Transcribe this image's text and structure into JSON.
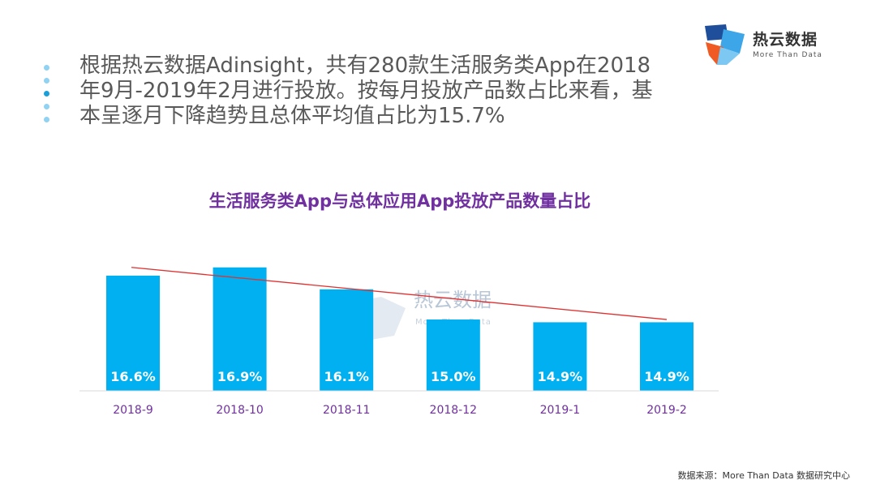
{
  "logo": {
    "name_cn": "热云数据",
    "name_en": "More Than Data"
  },
  "intro": {
    "lines": [
      "根据热云数据Adinsight，共有280款生活服务类App在2018",
      "年9月-2019年2月进行投放。按每月投放产品数占比来看，基",
      "本呈逐月下降趋势且总体平均值占比为15.7%"
    ]
  },
  "colors": {
    "bar": "#00b0f0",
    "trend": "#e03030",
    "title": "#7030a0",
    "tick": "#7030a0"
  },
  "watermark": {
    "cn": "热云数据",
    "en": "More Than Data"
  },
  "chart_data": {
    "type": "bar",
    "title": "生活服务类App与总体应用App投放产品数量占比",
    "categories": [
      "2018-9",
      "2018-10",
      "2018-11",
      "2018-12",
      "2019-1",
      "2019-2"
    ],
    "values": [
      16.6,
      16.9,
      16.1,
      15.0,
      14.9,
      14.9
    ],
    "value_labels": [
      "16.6%",
      "16.9%",
      "16.1%",
      "15.0%",
      "14.9%",
      "14.9%"
    ],
    "unit": "%",
    "ylim": [
      12.4,
      17.1
    ],
    "trendline": {
      "type": "linear",
      "start": 16.9,
      "end": 15.0
    },
    "xlabel": "",
    "ylabel": "",
    "grid": false,
    "legend": "none"
  },
  "source": "数据来源：More Than Data 数据研究中心"
}
